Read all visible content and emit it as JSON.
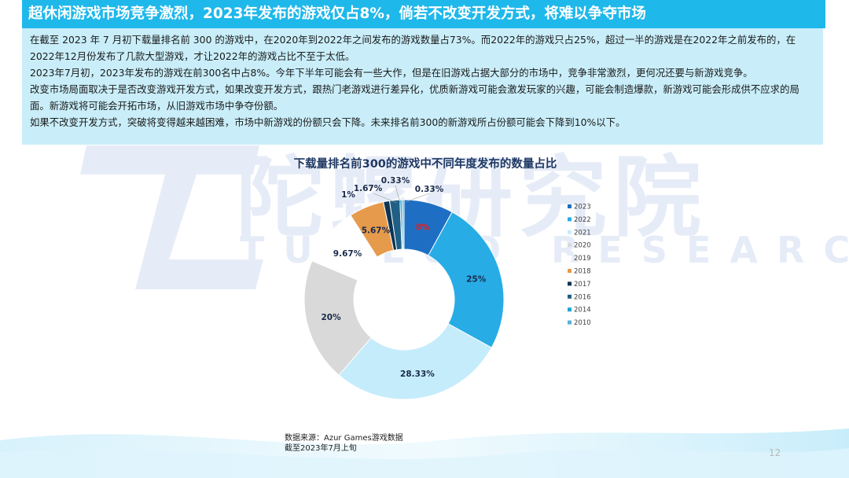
{
  "header": {
    "title": "超休闲游戏市场竞争激烈，2023年发布的游戏仅占8%，倘若不改变开发方式，将难以争夺市场"
  },
  "summary": {
    "paragraphs": [
      "在截至 2023 年 7 月初下载量排名前 300 的游戏中，在2020年到2022年之间发布的游戏数量占73%。而2022年的游戏只占25%，超过一半的游戏是在2022年之前发布的，在2022年12月份发布了几款大型游戏，才让2022年的游戏占比不至于太低。",
      "2023年7月初，2023年发布的游戏在前300名中占8%。今年下半年可能会有一些大作，但是在旧游戏占据大部分的市场中，竞争非常激烈，更何况还要与新游戏竞争。",
      "改变市场局面取决于是否改变游戏开发方式，如果改变开发方式，跟热门老游戏进行差异化，优质新游戏可能会激发玩家的兴趣，可能会制造爆款，新游戏可能会形成供不应求的局面。新游戏将可能会开拓市场，从旧游戏市场中争夺份额。",
      "如果不改变开发方式，突破将变得越来越困难，市场中新游戏的份额只会下降。未来排名前300的新游戏所占份额可能会下降到10%以下。"
    ]
  },
  "watermark": {
    "logo": "TL",
    "name": "陀螺研究院",
    "name_en": "TUOLUO RESEARCH"
  },
  "chart_data": {
    "type": "pie",
    "variant": "donut",
    "title": "下载量排名前300的游戏中不同年度发布的数量占比",
    "categories": [
      "2023",
      "2022",
      "2021",
      "2020",
      "2019",
      "2018",
      "2017",
      "2016",
      "2014",
      "2010"
    ],
    "values": [
      8,
      25,
      28.33,
      20,
      9.67,
      5.67,
      1,
      1.67,
      0.33,
      0.33
    ],
    "labels": [
      "8%",
      "25%",
      "28.33%",
      "20%",
      "9.67%",
      "5.67%",
      "1%",
      "1.67%",
      "0.33%",
      "0.33%"
    ],
    "colors": [
      "#1e6fc4",
      "#27ace6",
      "#c5ecfb",
      "#d9d9d9",
      "#ffffff",
      "#e69a4c",
      "#0d3554",
      "#1f5f86",
      "#1ea6d4",
      "#5ab0d8"
    ],
    "label_colors": [
      "#e02020",
      "#1a2a4a",
      "#1a2a4a",
      "#1a2a4a",
      "#1a2a4a",
      "#1a2a4a",
      "#1a2a4a",
      "#1a2a4a",
      "#1a2a4a",
      "#1a2a4a"
    ],
    "legend_position": "right"
  },
  "footer": {
    "source": "数据来源：Azur  Games游戏数据",
    "note": "截至2023年7月上旬",
    "page": "12"
  }
}
